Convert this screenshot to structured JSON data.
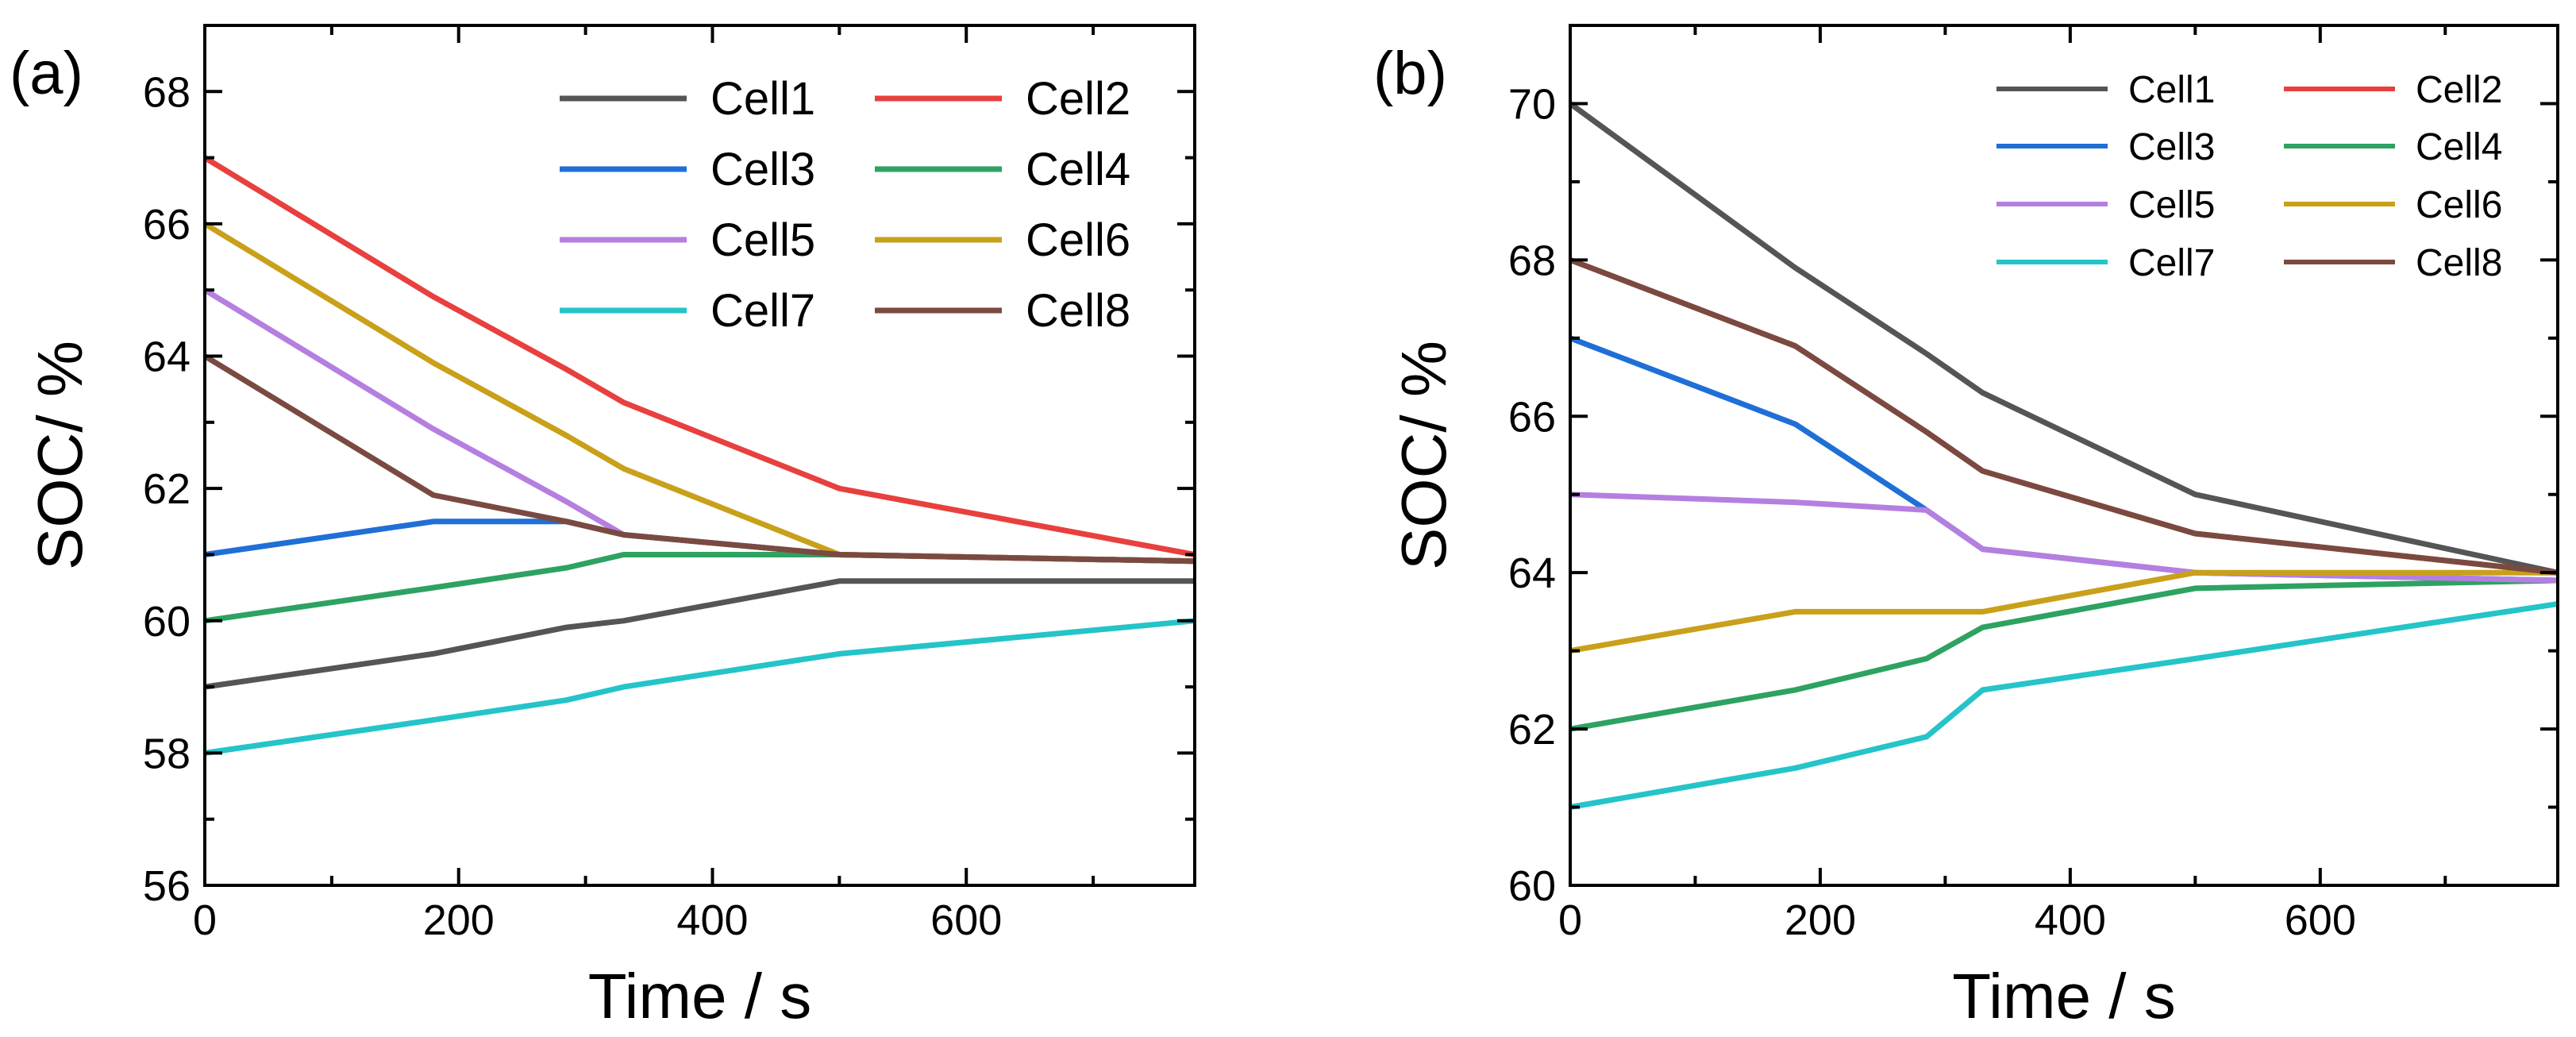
{
  "chart_data": [
    {
      "type": "line",
      "panel_label": "(a)",
      "xlabel": "Time / s",
      "ylabel": "SOC/ %",
      "xlim": [
        0,
        780
      ],
      "ylim": [
        56,
        69
      ],
      "xticks": [
        0,
        200,
        400,
        600
      ],
      "yticks": [
        56,
        58,
        60,
        62,
        64,
        66,
        68
      ],
      "grid": false,
      "legend": {
        "position": "top-right",
        "columns": 2
      },
      "series": [
        {
          "name": "Cell1",
          "color": "#555555",
          "x": [
            0,
            180,
            285,
            330,
            500,
            780
          ],
          "y": [
            59.0,
            59.5,
            59.9,
            60.0,
            60.6,
            60.6
          ]
        },
        {
          "name": "Cell2",
          "color": "#e8403e",
          "x": [
            0,
            180,
            285,
            330,
            500,
            780
          ],
          "y": [
            67.0,
            64.9,
            63.8,
            63.3,
            62.0,
            61.0
          ]
        },
        {
          "name": "Cell3",
          "color": "#1f6fd6",
          "x": [
            0,
            180,
            285,
            330,
            500,
            780
          ],
          "y": [
            61.0,
            61.5,
            61.5,
            61.3,
            61.0,
            60.9
          ]
        },
        {
          "name": "Cell4",
          "color": "#2ea260",
          "x": [
            0,
            180,
            285,
            330,
            500,
            780
          ],
          "y": [
            60.0,
            60.5,
            60.8,
            61.0,
            61.0,
            60.9
          ]
        },
        {
          "name": "Cell5",
          "color": "#b57fe0",
          "x": [
            0,
            180,
            285,
            330,
            500,
            780
          ],
          "y": [
            65.0,
            62.9,
            61.8,
            61.3,
            61.0,
            60.9
          ]
        },
        {
          "name": "Cell6",
          "color": "#c9a01a",
          "x": [
            0,
            180,
            285,
            330,
            500,
            780
          ],
          "y": [
            66.0,
            63.9,
            62.8,
            62.3,
            61.0,
            60.9
          ]
        },
        {
          "name": "Cell7",
          "color": "#24c4c8",
          "x": [
            0,
            180,
            285,
            330,
            500,
            780
          ],
          "y": [
            58.0,
            58.5,
            58.8,
            59.0,
            59.5,
            60.0
          ]
        },
        {
          "name": "Cell8",
          "color": "#7a4a40",
          "x": [
            0,
            180,
            285,
            330,
            500,
            780
          ],
          "y": [
            64.0,
            61.9,
            61.5,
            61.3,
            61.0,
            60.9
          ]
        }
      ]
    },
    {
      "type": "line",
      "panel_label": "(b)",
      "xlabel": "Time / s",
      "ylabel": "SOC/ %",
      "xlim": [
        0,
        790
      ],
      "ylim": [
        60,
        71
      ],
      "xticks": [
        0,
        200,
        400,
        600
      ],
      "yticks": [
        60,
        62,
        64,
        66,
        68,
        70
      ],
      "grid": false,
      "legend": {
        "position": "top-right",
        "columns": 2
      },
      "series": [
        {
          "name": "Cell1",
          "color": "#555555",
          "x": [
            0,
            180,
            285,
            330,
            500,
            790
          ],
          "y": [
            70.0,
            67.9,
            66.8,
            66.3,
            65.0,
            64.0
          ]
        },
        {
          "name": "Cell2",
          "color": "#e8403e",
          "x": [
            0,
            180,
            285,
            330,
            500,
            790
          ],
          "y": [
            68.0,
            66.9,
            65.8,
            65.3,
            64.5,
            64.0
          ]
        },
        {
          "name": "Cell3",
          "color": "#1f6fd6",
          "x": [
            0,
            180,
            285,
            330,
            500,
            790
          ],
          "y": [
            67.0,
            65.9,
            64.8,
            64.3,
            64.0,
            63.9
          ]
        },
        {
          "name": "Cell4",
          "color": "#2ea260",
          "x": [
            0,
            180,
            285,
            330,
            500,
            790
          ],
          "y": [
            62.0,
            62.5,
            62.9,
            63.3,
            63.8,
            63.9
          ]
        },
        {
          "name": "Cell5",
          "color": "#b57fe0",
          "x": [
            0,
            180,
            285,
            330,
            500,
            790
          ],
          "y": [
            65.0,
            64.9,
            64.8,
            64.3,
            64.0,
            63.9
          ]
        },
        {
          "name": "Cell6",
          "color": "#c9a01a",
          "x": [
            0,
            180,
            285,
            330,
            500,
            790
          ],
          "y": [
            63.0,
            63.5,
            63.5,
            63.5,
            64.0,
            64.0
          ]
        },
        {
          "name": "Cell7",
          "color": "#24c4c8",
          "x": [
            0,
            180,
            285,
            330,
            500,
            790
          ],
          "y": [
            61.0,
            61.5,
            61.9,
            62.5,
            62.9,
            63.6
          ]
        },
        {
          "name": "Cell8",
          "color": "#7a4a40",
          "x": [
            0,
            180,
            285,
            330,
            500,
            790
          ],
          "y": [
            68.0,
            66.9,
            65.8,
            65.3,
            64.5,
            64.0
          ]
        }
      ]
    }
  ]
}
